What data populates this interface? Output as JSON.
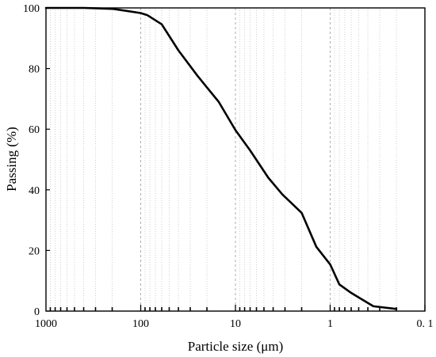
{
  "chart_data": {
    "type": "line",
    "title": "",
    "xlabel": "Particle size (μm)",
    "ylabel": "Passing (%)",
    "x_scale": "log",
    "x_reversed": true,
    "xlim": [
      1000,
      0.1
    ],
    "ylim": [
      0,
      100
    ],
    "grid": "vertical dashed at decades, dotted at minor ticks",
    "x_ticks": [
      {
        "value": 1000,
        "label": "1000"
      },
      {
        "value": 100,
        "label": "100"
      },
      {
        "value": 10,
        "label": "10"
      },
      {
        "value": 1,
        "label": "1"
      },
      {
        "value": 0.1,
        "label": "0. 1"
      }
    ],
    "y_ticks": [
      {
        "value": 0,
        "label": "0"
      },
      {
        "value": 20,
        "label": "20"
      },
      {
        "value": 40,
        "label": "40"
      },
      {
        "value": 60,
        "label": "60"
      },
      {
        "value": 80,
        "label": "80"
      },
      {
        "value": 100,
        "label": "100"
      }
    ],
    "series": [
      {
        "color": "#000000",
        "x": [
          1000,
          700,
          400,
          200,
          140,
          100,
          85,
          60,
          40,
          25,
          15,
          10,
          7,
          4.5,
          3.2,
          2,
          1.4,
          1,
          0.8,
          0.6,
          0.5,
          0.35,
          0.2
        ],
        "y": [
          100,
          100,
          100,
          99.7,
          99,
          98.3,
          97.6,
          94.6,
          86,
          77.5,
          69,
          59.7,
          53,
          44,
          38.5,
          32.4,
          21.2,
          15.4,
          8.8,
          6,
          4.5,
          1.6,
          0.7
        ]
      }
    ]
  }
}
